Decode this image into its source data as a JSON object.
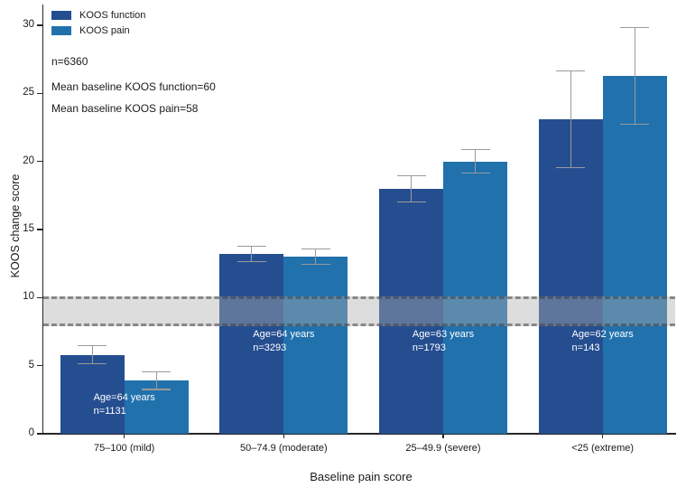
{
  "chart_data": {
    "type": "bar",
    "title": "",
    "xlabel": "Baseline pain score",
    "ylabel": "KOOS change score",
    "ylim": [
      0,
      30
    ],
    "yticks": [
      0,
      5,
      10,
      15,
      20,
      25,
      30
    ],
    "grid": false,
    "legend_position": "top-left-inside",
    "categories": [
      "75–100 (mild)",
      "50–74.9 (moderate)",
      "25–49.9 (severe)",
      "<25 (extreme)"
    ],
    "series": [
      {
        "name": "KOOS function",
        "color": "#254e90",
        "values": [
          5.8,
          13.2,
          18.0,
          23.1
        ],
        "errors": [
          0.65,
          0.55,
          0.95,
          3.55
        ]
      },
      {
        "name": "KOOS pain",
        "color": "#2171ac",
        "values": [
          3.9,
          13.0,
          20.0,
          26.3
        ],
        "errors": [
          0.65,
          0.55,
          0.85,
          3.55
        ]
      }
    ],
    "group_labels": [
      {
        "age": "Age=64 years",
        "n": "n=1131"
      },
      {
        "age": "Age=64 years",
        "n": "n=3293"
      },
      {
        "age": "Age=63 years",
        "n": "n=1793"
      },
      {
        "age": "Age=62 years",
        "n": "n=143"
      }
    ],
    "reference_band": {
      "from": 8,
      "to": 10
    },
    "annotations": {
      "n_total": "n=6360",
      "mean_function": "Mean baseline KOOS function=60",
      "mean_pain": "Mean baseline KOOS pain=58"
    }
  }
}
